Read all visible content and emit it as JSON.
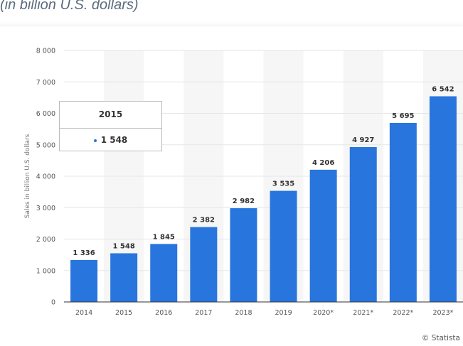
{
  "subtitle": "(in billion U.S. dollars)",
  "credit": "© Statista",
  "tooltip": {
    "category": "2015",
    "value": "1 548"
  },
  "colors": {
    "bar": "#2876dd",
    "band": "#f6f6f6",
    "grid": "#e6e6e6"
  },
  "chart_data": {
    "type": "bar",
    "categories": [
      "2014",
      "2015",
      "2016",
      "2017",
      "2018",
      "2019",
      "2020*",
      "2021*",
      "2022*",
      "2023*"
    ],
    "values": [
      1336,
      1548,
      1845,
      2382,
      2982,
      3535,
      4206,
      4927,
      5695,
      6542
    ],
    "value_labels": [
      "1 336",
      "1 548",
      "1 845",
      "2 382",
      "2 982",
      "3 535",
      "4 206",
      "4 927",
      "5 695",
      "6 542"
    ],
    "title": "",
    "xlabel": "",
    "ylabel": "Sales in billion U.S. dollars",
    "ylim": [
      0,
      8000
    ],
    "yticks": [
      0,
      1000,
      2000,
      3000,
      4000,
      5000,
      6000,
      7000,
      8000
    ],
    "ytick_labels": [
      "0",
      "1 000",
      "2 000",
      "3 000",
      "4 000",
      "5 000",
      "6 000",
      "7 000",
      "8 000"
    ],
    "grid": true,
    "legend": "none"
  }
}
